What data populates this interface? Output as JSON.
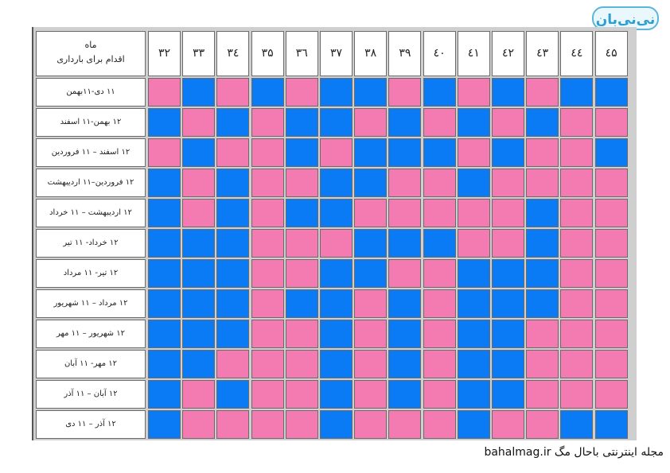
{
  "logo": {
    "text": "نی‌نی‌بان"
  },
  "caption": {
    "text": "مجله اینترنتی باحال مگ bahalmag.ir"
  },
  "colors": {
    "boy": "#0a7bf5",
    "girl": "#f47bb2"
  },
  "table": {
    "header_label_line1": "ماه",
    "header_label_line2": "اقدام برای بارداری",
    "columns": [
      "۳۲",
      "۳۳",
      "۳٤",
      "۳۵",
      "۳٦",
      "۳۷",
      "۳۸",
      "۳۹",
      "٤۰",
      "٤۱",
      "٤۲",
      "٤۳",
      "٤٤",
      "٤۵"
    ],
    "rows": [
      {
        "label": "۱۱ دی-۱۱بهمن",
        "cells": [
          "P",
          "B",
          "P",
          "B",
          "P",
          "B",
          "B",
          "P",
          "B",
          "P",
          "B",
          "P",
          "B",
          "B"
        ]
      },
      {
        "label": "۱۲ بهمن-۱۱ اسفند",
        "cells": [
          "B",
          "P",
          "B",
          "P",
          "B",
          "B",
          "P",
          "B",
          "P",
          "B",
          "P",
          "B",
          "P",
          "P"
        ]
      },
      {
        "label": "۱۲ اسفند – ۱۱ فروردین",
        "cells": [
          "P",
          "B",
          "P",
          "P",
          "B",
          "P",
          "B",
          "B",
          "B",
          "P",
          "B",
          "P",
          "P",
          "B"
        ]
      },
      {
        "label": "۱۲ فروردین–۱۱ اردیبهشت",
        "cells": [
          "B",
          "P",
          "B",
          "P",
          "P",
          "B",
          "B",
          "P",
          "P",
          "B",
          "P",
          "P",
          "P",
          "P"
        ]
      },
      {
        "label": "۱۲ اردیبهشت – ۱۱ خرداد",
        "cells": [
          "B",
          "P",
          "B",
          "P",
          "B",
          "B",
          "P",
          "P",
          "P",
          "P",
          "P",
          "B",
          "P",
          "P"
        ]
      },
      {
        "label": "۱۲ خرداد- ۱۱ تیر",
        "cells": [
          "B",
          "B",
          "B",
          "P",
          "P",
          "P",
          "B",
          "B",
          "B",
          "P",
          "P",
          "B",
          "P",
          "P"
        ]
      },
      {
        "label": "۱۲ تیر- ۱۱ مرداد",
        "cells": [
          "B",
          "B",
          "B",
          "P",
          "P",
          "B",
          "B",
          "P",
          "P",
          "B",
          "B",
          "B",
          "P",
          "P"
        ]
      },
      {
        "label": "۱۲ مرداد – ۱۱ شهریور",
        "cells": [
          "B",
          "B",
          "B",
          "P",
          "B",
          "B",
          "P",
          "B",
          "P",
          "B",
          "B",
          "B",
          "P",
          "P"
        ]
      },
      {
        "label": "۱۲ شهریور – ۱۱ مهر",
        "cells": [
          "B",
          "B",
          "B",
          "P",
          "P",
          "B",
          "P",
          "B",
          "P",
          "B",
          "B",
          "P",
          "P",
          "P"
        ]
      },
      {
        "label": "۱۲ مهر- ۱۱ آبان",
        "cells": [
          "B",
          "B",
          "P",
          "P",
          "P",
          "B",
          "P",
          "B",
          "P",
          "B",
          "B",
          "P",
          "P",
          "P"
        ]
      },
      {
        "label": "۱۲ آبان – ۱۱ آذر",
        "cells": [
          "B",
          "P",
          "B",
          "P",
          "P",
          "B",
          "P",
          "B",
          "P",
          "B",
          "B",
          "P",
          "P",
          "P"
        ]
      },
      {
        "label": "۱۲ آذر – ۱۱ دی",
        "cells": [
          "B",
          "P",
          "P",
          "P",
          "P",
          "B",
          "P",
          "P",
          "P",
          "B",
          "P",
          "P",
          "B",
          "B"
        ]
      }
    ]
  }
}
